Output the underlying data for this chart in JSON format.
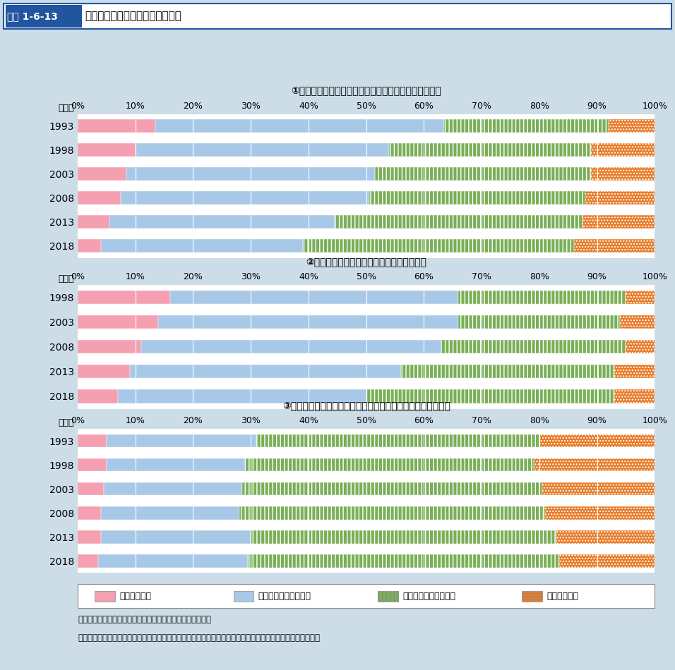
{
  "title_label": "図表 1-6-13",
  "title_text": "高齢の親への援助に関する考え方",
  "subtitle1": "①「年をとった親は子ども夫婦と一緒に暮らすべきだ」",
  "subtitle2": "②「年老いた親の介護は家族が担うべきだ」",
  "subtitle3": "③「高齢者の経済的援助は、公的機関より家族が行うべきだ」",
  "chart1": {
    "years": [
      1993,
      1998,
      2003,
      2008,
      2013,
      2018
    ],
    "s1": [
      13.5,
      10.0,
      8.5,
      7.5,
      5.5,
      4.0
    ],
    "s2": [
      50.0,
      44.0,
      43.0,
      43.0,
      39.0,
      35.0
    ],
    "s3": [
      28.5,
      35.0,
      37.5,
      37.5,
      43.0,
      47.0
    ],
    "s4": [
      8.0,
      11.0,
      11.0,
      12.0,
      12.5,
      14.0
    ]
  },
  "chart2": {
    "years": [
      1998,
      2003,
      2008,
      2013,
      2018
    ],
    "s1": [
      16.0,
      14.0,
      11.0,
      9.0,
      7.0
    ],
    "s2": [
      50.0,
      52.0,
      52.0,
      47.0,
      43.0
    ],
    "s3": [
      29.0,
      28.0,
      32.0,
      37.0,
      43.0
    ],
    "s4": [
      5.0,
      6.0,
      5.0,
      7.0,
      7.0
    ]
  },
  "chart3": {
    "years": [
      1993,
      1998,
      2003,
      2008,
      2013,
      2018
    ],
    "s1": [
      5.0,
      5.0,
      4.5,
      4.0,
      4.0,
      3.5
    ],
    "s2": [
      26.0,
      24.0,
      24.0,
      24.0,
      26.0,
      26.0
    ],
    "s3": [
      49.0,
      50.0,
      52.0,
      53.0,
      53.0,
      54.0
    ],
    "s4": [
      20.0,
      21.0,
      19.5,
      19.0,
      17.0,
      16.5
    ]
  },
  "colors": [
    "#F4A0B0",
    "#A8C8E8",
    "#7AAF58",
    "#E87C2A"
  ],
  "hatches": [
    "",
    "",
    "|||",
    "...."
  ],
  "legend_labels": [
    "まったく賛成",
    "どちらかといえば賛成",
    "どちらかといえば反対",
    "まったく反対"
  ],
  "bg_color": "#CCDDE8",
  "plot_bg": "#FFFFFF",
  "bar_height": 0.55,
  "note1": "資料：国立社会保障・人口問題研究所「全国家庭動向調査」",
  "note2": "（注）　すべての年代の有配偶女性を想定した調査であり、結果の集計は有配偶女性に限って行われている。"
}
